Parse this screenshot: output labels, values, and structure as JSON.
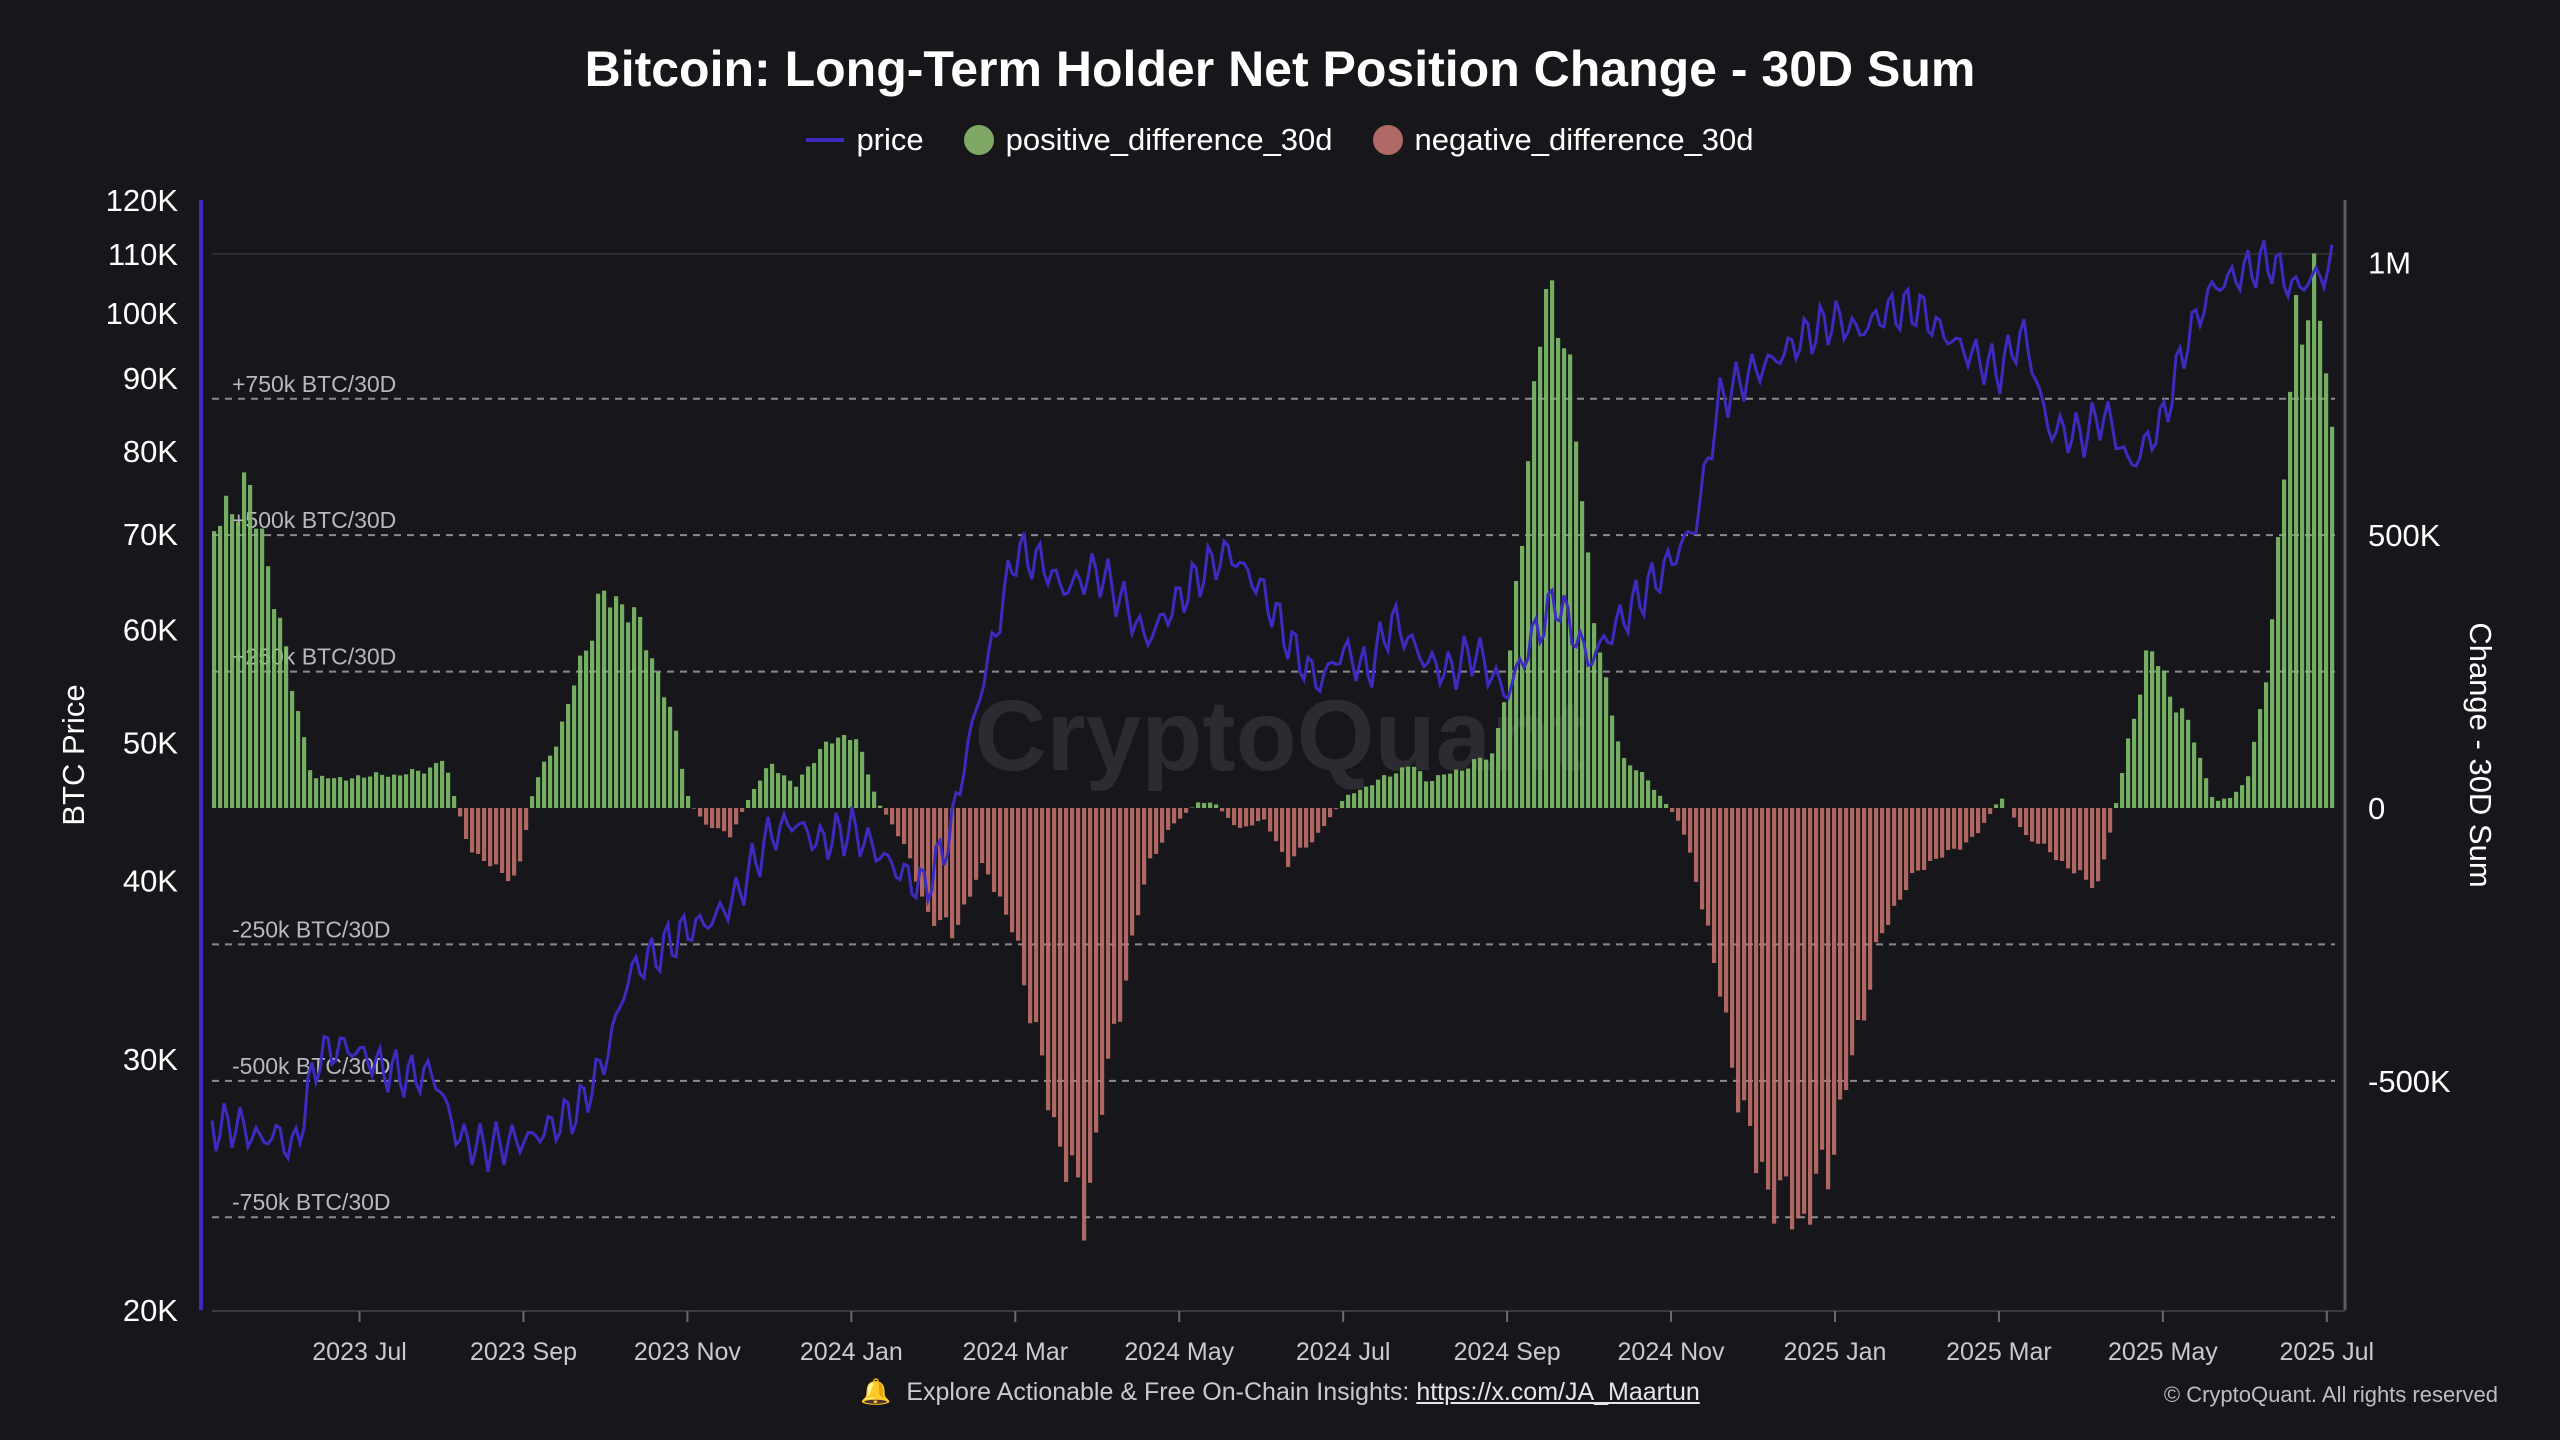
{
  "chart_data": {
    "type": "bar",
    "title": "Bitcoin: Long-Term Holder Net Position Change - 30D Sum",
    "legend": [
      "price",
      "positive_difference_30d",
      "negative_difference_30d"
    ],
    "colors": {
      "price": "#3d2bbf",
      "positive": "#7fbf6a",
      "negative": "#c0706a"
    },
    "ylabel_left": "BTC Price",
    "ylabel_right": "Change - 30D Sum",
    "yscale_left": "log",
    "ylim_left": [
      20000,
      120000
    ],
    "ylim_right": [
      -920000,
      1000000
    ],
    "left_ticks": [
      "120K",
      "110K",
      "100K",
      "90K",
      "80K",
      "70K",
      "60K",
      "50K",
      "40K",
      "30K",
      "20K"
    ],
    "left_tick_values": [
      120000,
      110000,
      100000,
      90000,
      80000,
      70000,
      60000,
      50000,
      40000,
      30000,
      20000
    ],
    "right_ticks": [
      "1M",
      "500K",
      "0",
      "-500K"
    ],
    "right_tick_values": [
      1000000,
      500000,
      0,
      -500000
    ],
    "x_ticks": [
      "2023 Jul",
      "2023 Sep",
      "2023 Nov",
      "2024 Jan",
      "2024 Mar",
      "2024 May",
      "2024 Jul",
      "2024 Sep",
      "2024 Nov",
      "2025 Jan",
      "2025 Mar",
      "2025 May",
      "2025 Jul"
    ],
    "x_tick_months": [
      1,
      3,
      5,
      7,
      9,
      11,
      13,
      15,
      17,
      19,
      21,
      23,
      25
    ],
    "x_range_months": [
      -0.8,
      25.1
    ],
    "reference_lines": [
      {
        "value": 750000,
        "label": "+750k BTC/30D"
      },
      {
        "value": 500000,
        "label": "+500k BTC/30D"
      },
      {
        "value": 250000,
        "label": "+250k BTC/30D"
      },
      {
        "value": -250000,
        "label": "-250k BTC/30D"
      },
      {
        "value": -500000,
        "label": "-500k BTC/30D"
      },
      {
        "value": -750000,
        "label": "-750k BTC/30D"
      }
    ],
    "net_change_30d": {
      "x_months": [
        -0.8,
        -0.6,
        -0.4,
        -0.2,
        0,
        0.2,
        0.4,
        0.6,
        0.8,
        1,
        1.4,
        1.8,
        2,
        2.3,
        2.6,
        2.9,
        3.1,
        3.4,
        3.7,
        3.9,
        4.2,
        4.5,
        4.8,
        5,
        5.2,
        5.5,
        5.8,
        6,
        6.3,
        6.6,
        7,
        7.3,
        7.6,
        7.9,
        8.2,
        8.6,
        9,
        9.4,
        9.8,
        10.2,
        10.6,
        10.9,
        11.2,
        11.4,
        11.7,
        12,
        12.3,
        12.6,
        13,
        13.4,
        13.8,
        14,
        14.4,
        14.8,
        15,
        15.2,
        15.4,
        15.6,
        15.8,
        16,
        16.2,
        16.4,
        16.7,
        16.9,
        17.1,
        17.4,
        17.7,
        18,
        18.3,
        18.6,
        18.9,
        19.2,
        19.5,
        19.8,
        20.1,
        20.4,
        20.7,
        21,
        21.3,
        21.6,
        21.9,
        22.2,
        22.5,
        22.8,
        23.1,
        23.3,
        23.6,
        23.8,
        24,
        24.2,
        24.4,
        24.6,
        24.8,
        25,
        25.1
      ],
      "values": [
        500000,
        560000,
        580000,
        500000,
        330000,
        200000,
        50000,
        60000,
        50000,
        60000,
        60000,
        70000,
        90000,
        -70000,
        -110000,
        -130000,
        40000,
        130000,
        280000,
        380000,
        380000,
        300000,
        160000,
        10000,
        -30000,
        -50000,
        40000,
        80000,
        40000,
        110000,
        140000,
        10000,
        -60000,
        -190000,
        -230000,
        -100000,
        -250000,
        -550000,
        -750000,
        -400000,
        -100000,
        -30000,
        10000,
        10000,
        -40000,
        -20000,
        -100000,
        -60000,
        20000,
        50000,
        80000,
        50000,
        70000,
        100000,
        250000,
        600000,
        900000,
        950000,
        700000,
        400000,
        200000,
        90000,
        50000,
        10000,
        -30000,
        -200000,
        -450000,
        -650000,
        -720000,
        -750000,
        -650000,
        -450000,
        -250000,
        -150000,
        -100000,
        -80000,
        -50000,
        20000,
        -50000,
        -80000,
        -120000,
        -140000,
        80000,
        300000,
        200000,
        150000,
        10000,
        20000,
        50000,
        200000,
        500000,
        900000,
        950000,
        800000,
        500000
      ]
    },
    "price": {
      "x_months": [
        -0.8,
        -0.5,
        -0.2,
        0,
        0.2,
        0.5,
        0.8,
        1,
        1.3,
        1.6,
        1.9,
        2.2,
        2.5,
        2.8,
        3.1,
        3.4,
        3.7,
        4,
        4.3,
        4.6,
        5,
        5.3,
        5.6,
        6,
        6.3,
        6.6,
        7,
        7.3,
        7.6,
        7.9,
        8.2,
        8.5,
        8.8,
        9,
        9.3,
        9.6,
        10,
        10.3,
        10.6,
        11,
        11.3,
        11.6,
        12,
        12.4,
        12.7,
        13,
        13.3,
        13.6,
        14,
        14.3,
        14.6,
        15,
        15.3,
        15.6,
        16,
        16.3,
        16.6,
        17,
        17.3,
        17.6,
        18,
        18.3,
        18.6,
        19,
        19.3,
        19.6,
        20,
        20.3,
        20.6,
        21,
        21.3,
        21.6,
        22,
        22.3,
        22.6,
        23,
        23.3,
        23.6,
        24,
        24.3,
        24.6,
        25,
        25.1
      ],
      "values": [
        26800,
        27000,
        26300,
        26600,
        25800,
        30200,
        30600,
        30300,
        29500,
        29200,
        29300,
        26400,
        26000,
        26200,
        26400,
        27000,
        27800,
        30000,
        34500,
        35500,
        37000,
        37500,
        39000,
        43000,
        44000,
        42500,
        43500,
        42000,
        40500,
        39500,
        43000,
        52000,
        61000,
        68000,
        67000,
        64000,
        66000,
        63000,
        59000,
        63000,
        66000,
        68000,
        64000,
        58000,
        55000,
        58000,
        56000,
        61000,
        57000,
        56000,
        58000,
        54000,
        59000,
        63000,
        57000,
        60000,
        63000,
        67000,
        71000,
        87000,
        91000,
        93000,
        96000,
        99000,
        97000,
        100000,
        101000,
        97000,
        94000,
        91000,
        97000,
        83000,
        82000,
        85000,
        78000,
        84000,
        96000,
        104000,
        107000,
        109000,
        104000,
        107000,
        109000
      ]
    }
  },
  "watermark": "CryptoQuant",
  "footer": {
    "text": "Explore Actionable & Free On-Chain Insights:",
    "link": "https://x.com/JA_Maartun",
    "copyright": "© CryptoQuant. All rights reserved"
  }
}
